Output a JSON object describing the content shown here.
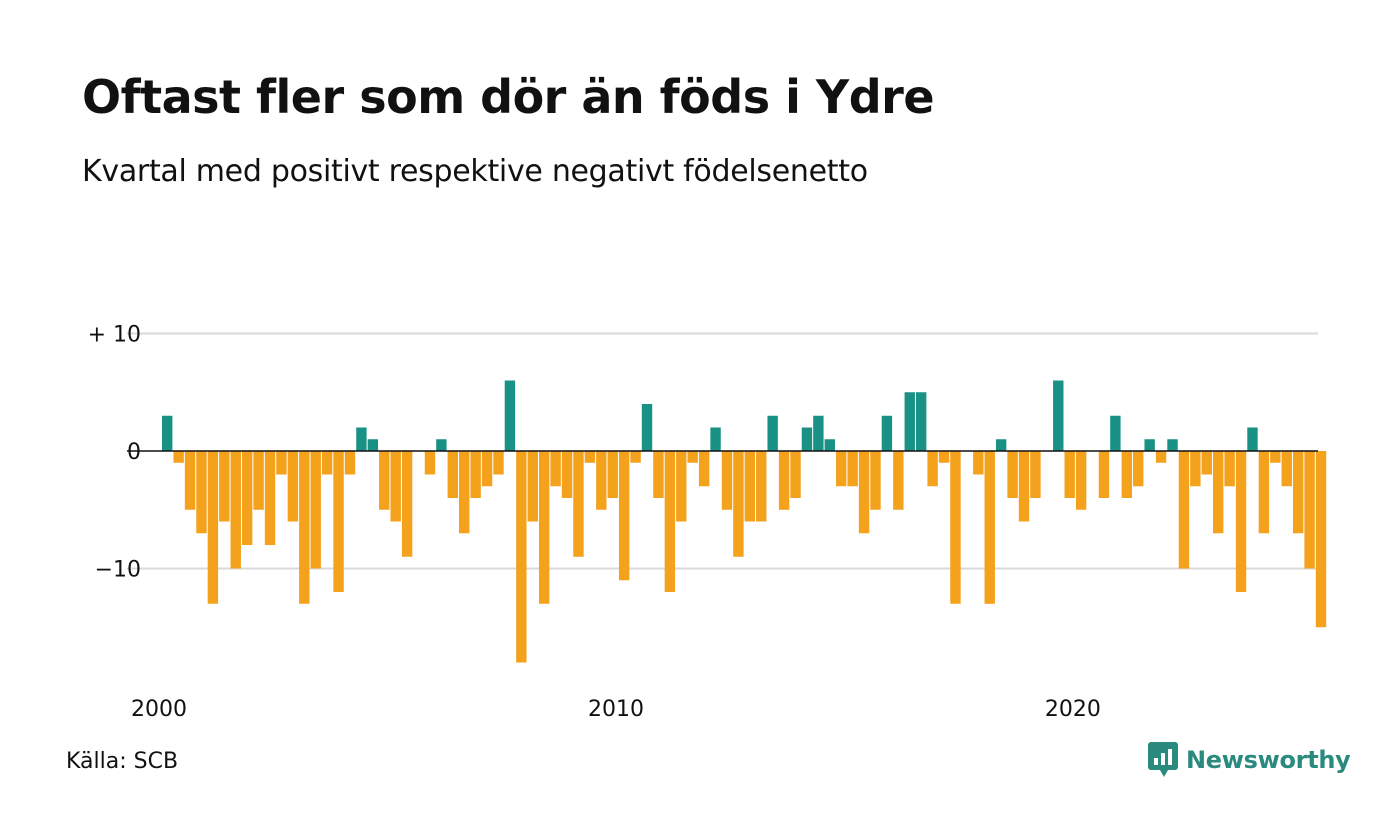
{
  "title": "Oftast fler som dör än föds i Ydre",
  "subtitle": "Kvartal med positivt respektive negativt födelsenetto",
  "source": "Källa: SCB",
  "brand": "Newsworthy",
  "colors": {
    "positive": "#1a9185",
    "negative": "#f4a11c",
    "brand": "#2a8a7e"
  },
  "chart_data": {
    "type": "bar",
    "ylim": [
      -19,
      10
    ],
    "yticks": [
      {
        "value": 10,
        "label": "+ 10"
      },
      {
        "value": 0,
        "label": "0"
      },
      {
        "value": -10,
        "label": "−10"
      }
    ],
    "xticks": [
      {
        "value": 2000,
        "label": "2000"
      },
      {
        "value": 2010,
        "label": "2010"
      },
      {
        "value": 2020,
        "label": "2020"
      }
    ],
    "x_start": "2000 Q1",
    "x_end": "2025 Q2",
    "grid": true,
    "values": [
      3,
      -1,
      -5,
      -7,
      -13,
      -6,
      -10,
      -8,
      -5,
      -8,
      -2,
      -6,
      -13,
      -10,
      -2,
      -12,
      -2,
      2,
      1,
      -5,
      -6,
      -9,
      0,
      -2,
      1,
      -4,
      -7,
      -4,
      -3,
      -2,
      6,
      -18,
      -6,
      -13,
      -3,
      -4,
      -9,
      -1,
      -5,
      -4,
      -11,
      -1,
      4,
      -4,
      -12,
      -6,
      -1,
      -3,
      2,
      -5,
      -9,
      -6,
      -6,
      3,
      -5,
      -4,
      2,
      3,
      1,
      -3,
      -3,
      -7,
      -5,
      3,
      -5,
      5,
      5,
      -3,
      -1,
      -13,
      0,
      -2,
      -13,
      1,
      -4,
      -6,
      -4,
      0,
      6,
      -4,
      -5,
      0,
      -4,
      3,
      -4,
      -3,
      1,
      -1,
      1,
      -10,
      -3,
      -2,
      -7,
      -3,
      -12,
      2,
      -7,
      -1,
      -3,
      -7,
      -10,
      -15
    ]
  }
}
